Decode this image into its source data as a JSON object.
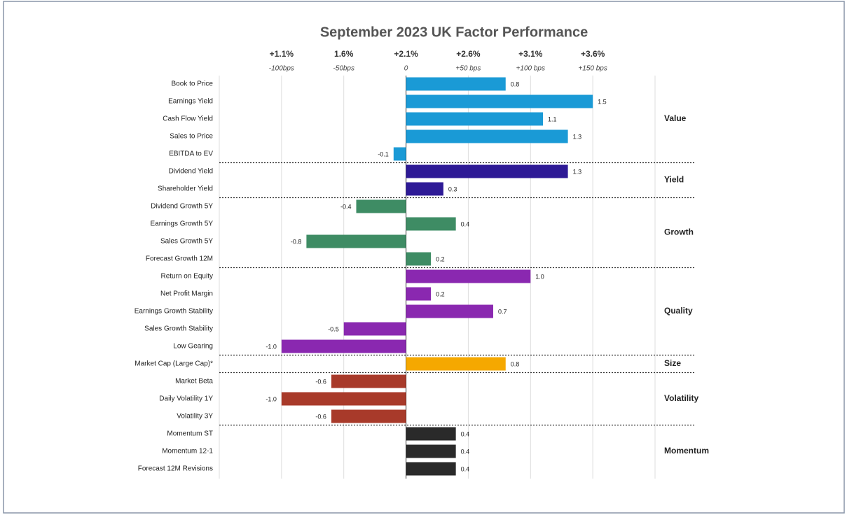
{
  "chart_data": {
    "type": "bar",
    "orientation": "horizontal",
    "title": "September 2023 UK Factor Performance",
    "xlim": [
      -1.5,
      2.0
    ],
    "xticks": [
      {
        "value": -1.0,
        "label": "+1.1%",
        "sublabel": "-100bps"
      },
      {
        "value": -0.5,
        "label": "1.6%",
        "sublabel": "-50bps"
      },
      {
        "value": 0,
        "label": "+2.1%",
        "sublabel": "0"
      },
      {
        "value": 0.5,
        "label": "+2.6%",
        "sublabel": "+50 bps"
      },
      {
        "value": 1.0,
        "label": "+3.1%",
        "sublabel": "+100 bps"
      },
      {
        "value": 1.5,
        "label": "+3.6%",
        "sublabel": "+150 bps"
      }
    ],
    "xgrid": [
      -1.5,
      2.0
    ],
    "grid": true,
    "groups": [
      {
        "name": "Value",
        "color": "#1a9ad6",
        "categories": [
          "Book to Price",
          "Earnings Yield",
          "Cash Flow Yield",
          "Sales to Price",
          "EBITDA to EV"
        ],
        "values": [
          0.8,
          1.5,
          1.1,
          1.3,
          -0.1
        ],
        "value_labels": [
          "0.8",
          "1.5",
          "1.1",
          "1.3",
          "-0.1"
        ]
      },
      {
        "name": "Yield",
        "color": "#2e1a96",
        "categories": [
          "Dividend Yield",
          "Shareholder Yield"
        ],
        "values": [
          1.3,
          0.3
        ],
        "value_labels": [
          "1.3",
          "0.3"
        ]
      },
      {
        "name": "Growth",
        "color": "#3e8c64",
        "categories": [
          "Dividend Growth 5Y",
          "Earnings Growth 5Y",
          "Sales Growth 5Y",
          "Forecast Growth 12M"
        ],
        "values": [
          -0.4,
          0.4,
          -0.8,
          0.2
        ],
        "value_labels": [
          "-0.4",
          "0.4",
          "-0.8",
          "0.2"
        ]
      },
      {
        "name": "Quality",
        "color": "#8a28b0",
        "categories": [
          "Return on Equity",
          "Net Profit Margin",
          "Earnings Growth Stability",
          "Sales Growth Stability",
          "Low Gearing"
        ],
        "values": [
          1.0,
          0.2,
          0.7,
          -0.5,
          -1.0
        ],
        "value_labels": [
          "1.0",
          "0.2",
          "0.7",
          "-0.5",
          "-1.0"
        ]
      },
      {
        "name": "Size",
        "color": "#f5a800",
        "categories": [
          "Market Cap (Large Cap)*"
        ],
        "values": [
          0.8
        ],
        "value_labels": [
          "0.8"
        ]
      },
      {
        "name": "Volatility",
        "color": "#a83a2a",
        "categories": [
          "Market Beta",
          "Daily Volatility 1Y",
          "Volatility 3Y"
        ],
        "values": [
          -0.6,
          -1.0,
          -0.6
        ],
        "value_labels": [
          "-0.6",
          "-1.0",
          "-0.6"
        ]
      },
      {
        "name": "Momentum",
        "color": "#2a2a2a",
        "categories": [
          "Momentum ST",
          "Momentum 12-1",
          "Forecast 12M Revisions"
        ],
        "values": [
          0.4,
          0.4,
          0.4
        ],
        "value_labels": [
          "0.4",
          "0.4",
          "0.4"
        ]
      }
    ]
  }
}
